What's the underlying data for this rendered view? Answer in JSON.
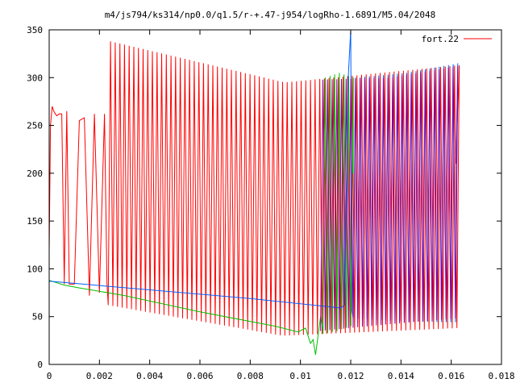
{
  "chart_data": {
    "type": "line",
    "title": "m4/js794/ks314/np0.0/q1.5/r-+.47-j954/logRho-1.6891/M5.04/2048",
    "xlabel": "",
    "ylabel": "",
    "xlim": [
      0,
      0.018
    ],
    "ylim": [
      0,
      350
    ],
    "x_ticks": [
      "0",
      "0.002",
      "0.004",
      "0.006",
      "0.008",
      "0.01",
      "0.012",
      "0.014",
      "0.016",
      "0.018"
    ],
    "y_ticks": [
      "0",
      "50",
      "100",
      "150",
      "200",
      "250",
      "300",
      "350"
    ],
    "grid": false,
    "legend_position": "top-right",
    "series": [
      {
        "name": "fort.22",
        "color": "#ff0000",
        "segments": [
          {
            "kind": "points",
            "x": [
              0.0,
              5e-05,
              0.00012,
              0.00018,
              0.00025,
              0.0003,
              0.0004,
              0.0005,
              0.0006,
              0.0007,
              0.0008,
              0.0009,
              0.001,
              0.0012,
              0.0014,
              0.0016,
              0.0018,
              0.002,
              0.0022,
              0.0023
            ],
            "y": [
              118,
              250,
              270,
              265,
              262,
              260,
              262,
              262,
              84,
              265,
              84,
              84,
              84,
              255,
              258,
              72,
              262,
              75,
              262,
              85
            ]
          },
          {
            "kind": "oscillation",
            "x_start": 0.00235,
            "x_end": 0.0162,
            "period": 0.000185,
            "max_start": 338,
            "max_mid": 295,
            "max_end": 313,
            "min_start": 62,
            "min_mid": 30,
            "min_end": 38,
            "final_value": 225
          }
        ]
      },
      {
        "name": "",
        "color": "#00c000",
        "segments": [
          {
            "kind": "points",
            "x": [
              0.0,
              0.0006,
              0.0012,
              0.003,
              0.006,
              0.009,
              0.0099,
              0.0102,
              0.0104,
              0.0105,
              0.0106,
              0.0107,
              0.0108,
              0.0109
            ],
            "y": [
              88,
              83,
              80,
              72,
              55,
              40,
              34,
              38,
              22,
              26,
              10,
              30,
              50,
              35
            ]
          },
          {
            "kind": "oscillation",
            "x_start": 0.0109,
            "x_end": 0.0121,
            "period": 0.000185,
            "max_start": 300,
            "max_mid": 305,
            "max_end": 300,
            "min_start": 32,
            "min_mid": 35,
            "min_end": 40,
            "final_value": 200
          }
        ]
      },
      {
        "name": "",
        "color": "#0060ff",
        "segments": [
          {
            "kind": "points",
            "x": [
              0.0,
              0.004,
              0.008,
              0.0116,
              0.01175,
              0.0119,
              0.012,
              0.01205
            ],
            "y": [
              87,
              78,
              69,
              59,
              62,
              300,
              350,
              56
            ]
          },
          {
            "kind": "oscillation",
            "x_start": 0.0121,
            "x_end": 0.0162,
            "period": 0.000185,
            "max_start": 300,
            "max_mid": 305,
            "max_end": 315,
            "min_start": 48,
            "min_mid": 45,
            "min_end": 44,
            "final_value": 220
          }
        ]
      },
      {
        "name": "",
        "color": "#8000a0",
        "segments": [
          {
            "kind": "oscillation",
            "x_start": 0.0108,
            "x_end": 0.0162,
            "period": 0.000185,
            "max_start": 298,
            "max_mid": 300,
            "max_end": 312,
            "min_start": 35,
            "min_mid": 42,
            "min_end": 48,
            "final_value": 210
          }
        ]
      }
    ]
  }
}
